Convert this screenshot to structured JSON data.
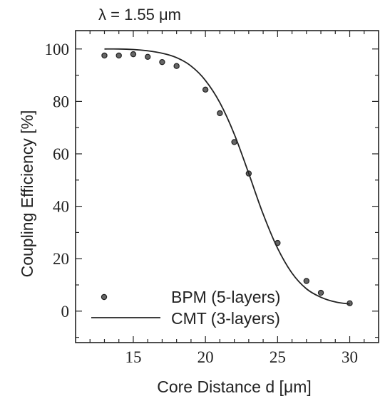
{
  "chart_data": {
    "type": "scatter",
    "title": "λ = 1.55 μm",
    "xlabel": "Core Distance d [μm]",
    "ylabel": "Coupling Efficiency [%]",
    "xlim": [
      11,
      32
    ],
    "ylim": [
      -12,
      107
    ],
    "x_ticks": [
      15,
      20,
      25,
      30
    ],
    "y_ticks": [
      0,
      20,
      40,
      60,
      80,
      100
    ],
    "grid": false,
    "legend_position": "bottom-left",
    "series": [
      {
        "name": "BPM (5-layers)",
        "style": "markers",
        "x": [
          13,
          14,
          15,
          16,
          17,
          18,
          20,
          21,
          22,
          23,
          25,
          27,
          28,
          30
        ],
        "y": [
          97.5,
          97.5,
          98,
          97,
          95,
          93.5,
          84.5,
          75.5,
          64.5,
          52.5,
          26,
          11.5,
          7,
          3
        ]
      },
      {
        "name": "CMT (3-layers)",
        "style": "line",
        "x": [
          13,
          14,
          15,
          16,
          17,
          18,
          19,
          20,
          21,
          22,
          23,
          24,
          25,
          26,
          27,
          28,
          29,
          30
        ],
        "y": [
          100,
          100,
          99.8,
          99.3,
          98.4,
          96.7,
          93.5,
          88,
          79.5,
          67.5,
          52.5,
          37,
          24,
          14.5,
          8.5,
          5.3,
          3.5,
          2.7
        ]
      }
    ]
  }
}
